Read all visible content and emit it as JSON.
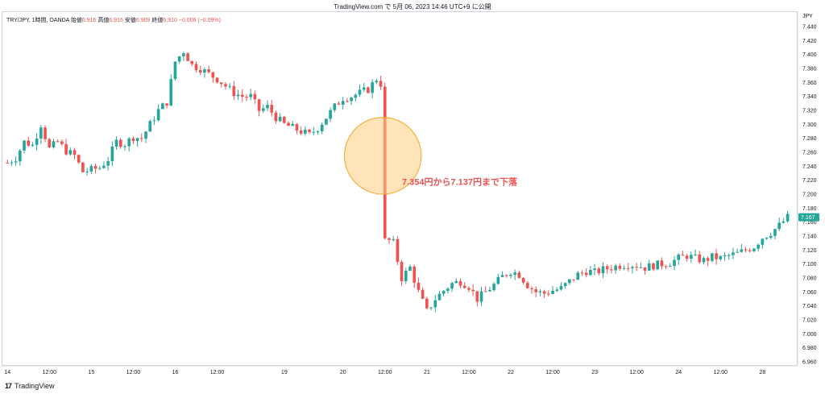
{
  "header": {
    "attribution": "TradingView.com で 5月 06, 2023 14:46 UTC+9 に公開"
  },
  "legend": {
    "symbol": "TRY/JPY, 1時間, OANDA",
    "open_label": "始値",
    "open": "6.916",
    "high_label": "高値",
    "high": "6.916",
    "low_label": "安値",
    "low": "6.909",
    "close_label": "終値",
    "close": "6.910",
    "change": "−0.006 (−0.09%)"
  },
  "footer": {
    "logo": "17",
    "brand": "TradingView"
  },
  "colors": {
    "up": "#26a69a",
    "down": "#ef5350",
    "highlight_fill": "#ffcc80",
    "annotation": "#ef5350",
    "price_tag": "#26a69a"
  },
  "chart_data": {
    "type": "candlestick",
    "currency": "JPY",
    "ylim": [
      6.96,
      7.45
    ],
    "y_ticks": [
      "6.960",
      "6.980",
      "7.000",
      "7.020",
      "7.040",
      "7.060",
      "7.080",
      "7.100",
      "7.120",
      "7.140",
      "7.160",
      "7.180",
      "7.200",
      "7.220",
      "7.240",
      "7.260",
      "7.280",
      "7.300",
      "7.320",
      "7.340",
      "7.360",
      "7.380",
      "7.400",
      "7.420",
      "7.440"
    ],
    "x_ticks": [
      {
        "label": "14",
        "pos": 0
      },
      {
        "label": "12:00",
        "pos": 10
      },
      {
        "label": "15",
        "pos": 20
      },
      {
        "label": "12:00",
        "pos": 30
      },
      {
        "label": "16",
        "pos": 40
      },
      {
        "label": "12:00",
        "pos": 50
      },
      {
        "label": "19",
        "pos": 66
      },
      {
        "label": "20",
        "pos": 80
      },
      {
        "label": "12:00",
        "pos": 90
      },
      {
        "label": "21",
        "pos": 100
      },
      {
        "label": "12:00",
        "pos": 110
      },
      {
        "label": "22",
        "pos": 120
      },
      {
        "label": "12:00",
        "pos": 130
      },
      {
        "label": "23",
        "pos": 140
      },
      {
        "label": "12:00",
        "pos": 150
      },
      {
        "label": "24",
        "pos": 160
      },
      {
        "label": "12:00",
        "pos": 170
      },
      {
        "label": "28",
        "pos": 180
      }
    ],
    "x_range": [
      -1,
      188
    ],
    "close_path": [
      [
        0,
        7.245
      ],
      [
        2,
        7.252
      ],
      [
        4,
        7.275
      ],
      [
        6,
        7.27
      ],
      [
        8,
        7.3
      ],
      [
        10,
        7.265
      ],
      [
        12,
        7.275
      ],
      [
        14,
        7.262
      ],
      [
        16,
        7.255
      ],
      [
        18,
        7.232
      ],
      [
        20,
        7.235
      ],
      [
        22,
        7.238
      ],
      [
        24,
        7.25
      ],
      [
        26,
        7.275
      ],
      [
        28,
        7.272
      ],
      [
        30,
        7.282
      ],
      [
        32,
        7.28
      ],
      [
        34,
        7.3
      ],
      [
        36,
        7.32
      ],
      [
        38,
        7.332
      ],
      [
        40,
        7.39
      ],
      [
        42,
        7.405
      ],
      [
        44,
        7.385
      ],
      [
        46,
        7.38
      ],
      [
        48,
        7.372
      ],
      [
        50,
        7.365
      ],
      [
        52,
        7.355
      ],
      [
        54,
        7.345
      ],
      [
        56,
        7.34
      ],
      [
        58,
        7.34
      ],
      [
        60,
        7.32
      ],
      [
        62,
        7.325
      ],
      [
        64,
        7.31
      ],
      [
        66,
        7.3
      ],
      [
        68,
        7.295
      ],
      [
        70,
        7.29
      ],
      [
        72,
        7.285
      ],
      [
        74,
        7.295
      ],
      [
        76,
        7.31
      ],
      [
        78,
        7.325
      ],
      [
        80,
        7.338
      ],
      [
        82,
        7.34
      ],
      [
        84,
        7.345
      ],
      [
        86,
        7.35
      ],
      [
        88,
        7.365
      ],
      [
        89,
        7.354
      ],
      [
        90,
        7.137
      ],
      [
        92,
        7.13
      ],
      [
        94,
        7.08
      ],
      [
        96,
        7.095
      ],
      [
        98,
        7.06
      ],
      [
        100,
        7.032
      ],
      [
        102,
        7.05
      ],
      [
        104,
        7.062
      ],
      [
        106,
        7.072
      ],
      [
        108,
        7.075
      ],
      [
        110,
        7.068
      ],
      [
        112,
        7.05
      ],
      [
        114,
        7.06
      ],
      [
        116,
        7.07
      ],
      [
        118,
        7.082
      ],
      [
        120,
        7.09
      ],
      [
        122,
        7.085
      ],
      [
        124,
        7.07
      ],
      [
        126,
        7.06
      ],
      [
        128,
        7.058
      ],
      [
        130,
        7.062
      ],
      [
        132,
        7.065
      ],
      [
        134,
        7.075
      ],
      [
        136,
        7.085
      ],
      [
        138,
        7.09
      ],
      [
        140,
        7.088
      ],
      [
        142,
        7.092
      ],
      [
        144,
        7.095
      ],
      [
        146,
        7.098
      ],
      [
        148,
        7.1
      ],
      [
        150,
        7.098
      ],
      [
        152,
        7.095
      ],
      [
        154,
        7.098
      ],
      [
        156,
        7.1
      ],
      [
        158,
        7.102
      ],
      [
        160,
        7.108
      ],
      [
        162,
        7.112
      ],
      [
        164,
        7.108
      ],
      [
        166,
        7.105
      ],
      [
        168,
        7.11
      ],
      [
        170,
        7.108
      ],
      [
        172,
        7.112
      ],
      [
        174,
        7.115
      ],
      [
        176,
        7.12
      ],
      [
        178,
        7.125
      ],
      [
        180,
        7.138
      ],
      [
        182,
        7.145
      ],
      [
        184,
        7.155
      ],
      [
        186,
        7.167
      ]
    ],
    "last_price": {
      "value": 7.167,
      "label": "7.167"
    },
    "highlight": {
      "center_pos": 89.5,
      "center_y": 7.255,
      "radius_y": 0.055
    },
    "annotation": {
      "text": "7.354円から7.137円まで下落",
      "pos": 91,
      "y": 7.218
    }
  }
}
